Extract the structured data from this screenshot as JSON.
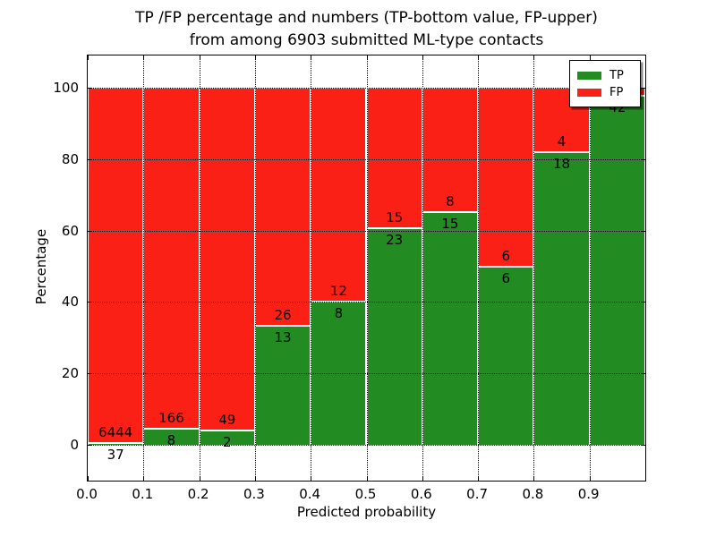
{
  "figure": {
    "title_line1": "TP /FP percentage and numbers (TP-bottom value, FP-upper)",
    "title_line2": "from among 6903 submitted ML-type contacts"
  },
  "chart_data": {
    "type": "bar",
    "stacked": true,
    "title": "TP /FP percentage and numbers (TP-bottom value, FP-upper) from among 6903 submitted ML-type contacts",
    "xlabel": "Predicted probability",
    "ylabel": "Percentage",
    "xlim": [
      0.0,
      1.0
    ],
    "ylim": [
      -10,
      109
    ],
    "grid": true,
    "legend_position": "upper right",
    "legend": [
      "TP",
      "FP"
    ],
    "series_colors": {
      "TP": "#228b22",
      "FP": "#fb2016"
    },
    "yticks": [
      0,
      20,
      40,
      60,
      80,
      100
    ],
    "yticklabels": [
      "0",
      "20",
      "40",
      "60",
      "80",
      "100"
    ],
    "xticks": [
      0.0,
      0.1,
      0.2,
      0.3,
      0.4,
      0.5,
      0.6,
      0.7,
      0.8,
      0.9
    ],
    "xticklabels": [
      "0.0",
      "0.1",
      "0.2",
      "0.3",
      "0.4",
      "0.5",
      "0.6",
      "0.7",
      "0.8",
      "0.9"
    ],
    "bins": [
      {
        "range": [
          0.0,
          0.1
        ],
        "tp": 37,
        "fp": 6444,
        "tp_pct": 0.57,
        "fp_pct": 99.43
      },
      {
        "range": [
          0.1,
          0.2
        ],
        "tp": 8,
        "fp": 166,
        "tp_pct": 4.6,
        "fp_pct": 95.4
      },
      {
        "range": [
          0.2,
          0.3
        ],
        "tp": 2,
        "fp": 49,
        "tp_pct": 3.92,
        "fp_pct": 96.08
      },
      {
        "range": [
          0.3,
          0.4
        ],
        "tp": 13,
        "fp": 26,
        "tp_pct": 33.33,
        "fp_pct": 66.67
      },
      {
        "range": [
          0.4,
          0.5
        ],
        "tp": 8,
        "fp": 12,
        "tp_pct": 40.0,
        "fp_pct": 60.0
      },
      {
        "range": [
          0.5,
          0.6
        ],
        "tp": 23,
        "fp": 15,
        "tp_pct": 60.53,
        "fp_pct": 39.47
      },
      {
        "range": [
          0.6,
          0.7
        ],
        "tp": 15,
        "fp": 8,
        "tp_pct": 65.22,
        "fp_pct": 34.78
      },
      {
        "range": [
          0.7,
          0.8
        ],
        "tp": 6,
        "fp": 6,
        "tp_pct": 50.0,
        "fp_pct": 50.0
      },
      {
        "range": [
          0.8,
          0.9
        ],
        "tp": 18,
        "fp": 4,
        "tp_pct": 81.82,
        "fp_pct": 18.18
      },
      {
        "range": [
          0.9,
          1.0
        ],
        "tp": 42,
        "fp": null,
        "tp_pct": 97.7,
        "fp_pct": 2.3
      }
    ]
  }
}
